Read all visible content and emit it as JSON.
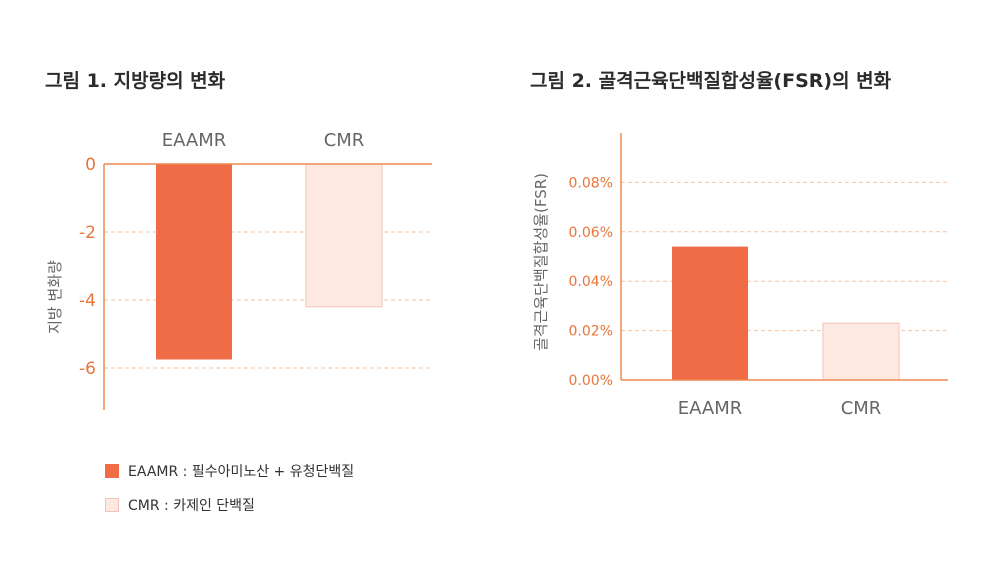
{
  "colors": {
    "axis": "#ee8a50",
    "tick_text": "#e8753a",
    "grid": "#f3c6a6",
    "eaamr": "#ef6c47",
    "cmr_fill": "#fde8e2",
    "cmr_stroke": "#f2c3b5",
    "category_text": "#666666"
  },
  "chart_data": [
    {
      "type": "bar",
      "title": "그림 1. 지방량의 변화",
      "ylabel": "지방 변화량",
      "xlabel": "",
      "categories": [
        "EAAMR",
        "CMR"
      ],
      "values": [
        -5.75,
        -4.2
      ],
      "ylim": [
        -7.2,
        0
      ],
      "yticks": [
        "0",
        "-2",
        "-4",
        "-6"
      ],
      "ytick_values": [
        0,
        -2,
        -4,
        -6
      ],
      "category_axis": "top",
      "grid": "horizontal-dashed"
    },
    {
      "type": "bar",
      "title": "그림 2. 골격근육단백질합성율(FSR)의 변화",
      "ylabel": "골격근육단백질합성율(FSR)",
      "xlabel": "",
      "categories": [
        "EAAMR",
        "CMR"
      ],
      "values": [
        0.054,
        0.023
      ],
      "ylim": [
        0,
        0.1
      ],
      "yticks": [
        "0.00%",
        "0.02%",
        "0.04%",
        "0.06%",
        "0.08%"
      ],
      "ytick_values": [
        0,
        0.02,
        0.04,
        0.06,
        0.08
      ],
      "category_axis": "bottom",
      "grid": "horizontal-dashed"
    }
  ],
  "legend": [
    {
      "label": "EAAMR : 필수아미노산 + 유청단백질"
    },
    {
      "label": "CMR : 카제인 단백질"
    }
  ]
}
